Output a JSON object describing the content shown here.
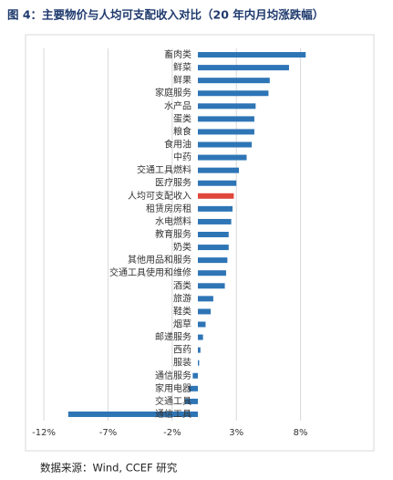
{
  "chart_data": {
    "type": "barh",
    "title": "图 4：主要物价与人均可支配收入对比（20 年内月均涨跌幅）",
    "source": "数据来源：Wind, CCEF 研究",
    "categories": [
      "畜肉类",
      "鲜菜",
      "鲜果",
      "家庭服务",
      "水产品",
      "蛋类",
      "粮食",
      "食用油",
      "中药",
      "交通工具燃料",
      "医疗服务",
      "人均可支配收入",
      "租赁房房租",
      "水电燃料",
      "教育服务",
      "奶类",
      "其他用品和服务",
      "交通工具使用和维修",
      "酒类",
      "旅游",
      "鞋类",
      "烟草",
      "邮递服务",
      "西药",
      "服装",
      "通信服务",
      "家用电器",
      "交通工具",
      "通信工具"
    ],
    "values": [
      8.4,
      7.1,
      5.6,
      5.5,
      4.5,
      4.4,
      4.4,
      4.2,
      3.8,
      3.2,
      3.0,
      2.8,
      2.7,
      2.6,
      2.4,
      2.4,
      2.3,
      2.2,
      2.1,
      1.2,
      1.0,
      0.6,
      0.4,
      0.2,
      0.1,
      -0.4,
      -0.7,
      -1.0,
      -10.1
    ],
    "colors": [
      "#2e75b6",
      "#2e75b6",
      "#2e75b6",
      "#2e75b6",
      "#2e75b6",
      "#2e75b6",
      "#2e75b6",
      "#2e75b6",
      "#2e75b6",
      "#2e75b6",
      "#2e75b6",
      "#e0463c",
      "#2e75b6",
      "#2e75b6",
      "#2e75b6",
      "#2e75b6",
      "#2e75b6",
      "#2e75b6",
      "#2e75b6",
      "#2e75b6",
      "#2e75b6",
      "#2e75b6",
      "#2e75b6",
      "#2e75b6",
      "#2e75b6",
      "#2e75b6",
      "#2e75b6",
      "#2e75b6",
      "#2e75b6"
    ],
    "xlim": [
      -13,
      13
    ],
    "xticks": [
      {
        "value": -12,
        "label": "-12%"
      },
      {
        "value": -7,
        "label": "-7%"
      },
      {
        "value": -2,
        "label": "-2%"
      },
      {
        "value": 3,
        "label": "3%"
      },
      {
        "value": 8,
        "label": "8%"
      }
    ],
    "grid": true
  }
}
